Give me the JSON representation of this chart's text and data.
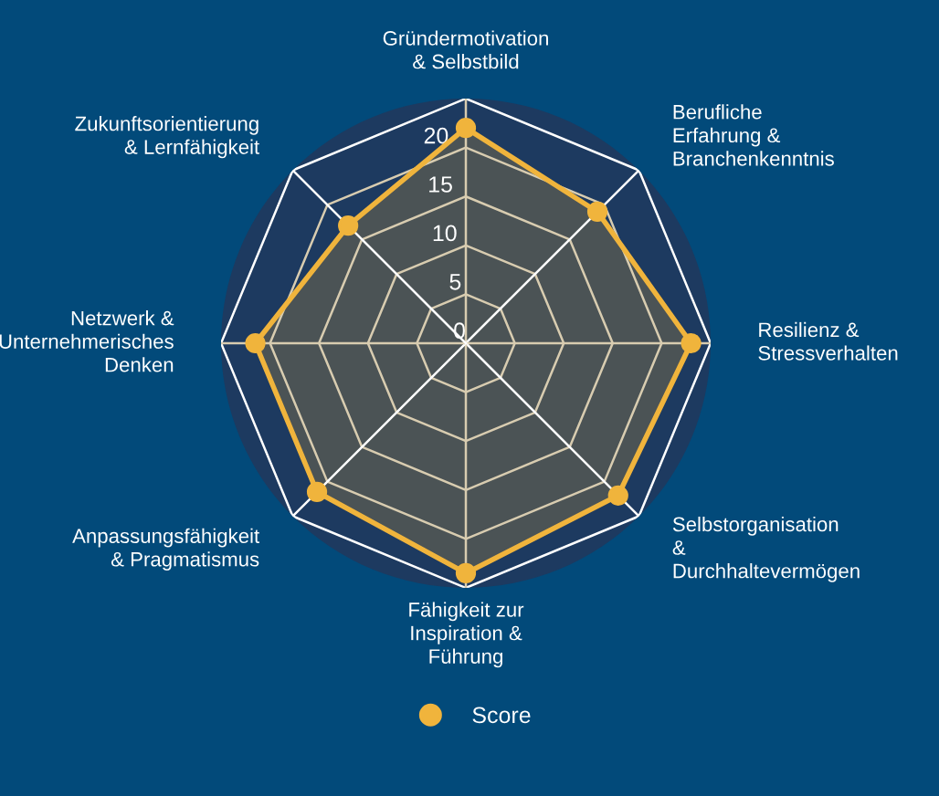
{
  "chart_data": {
    "type": "radar",
    "categories": [
      "Gründermotivation\n& Selbstbild",
      "Berufliche\nErfahrung &\nBranchenkenntnis",
      "Resilienz &\nStressverhalten",
      "Selbstorganisation\n&\nDurchhaltevermögen",
      "Fähigkeit zur\nInspiration &\nFührung",
      "Anpassungsfähigkeit\n& Pragmatismus",
      "Netzwerk &\nUnternehmerisches\nDenken",
      "Zukunftsorientierung\n& Lernfähigkeit"
    ],
    "series": [
      {
        "name": "Score",
        "color": "#f0b43c",
        "values": [
          22,
          19,
          23,
          22,
          23.5,
          21.5,
          21.5,
          17
        ]
      }
    ],
    "ylim": [
      0,
      25
    ],
    "yticks": [
      0,
      5,
      10,
      15,
      20
    ],
    "grid": true,
    "legend": "bottom",
    "marker": "circle"
  }
}
